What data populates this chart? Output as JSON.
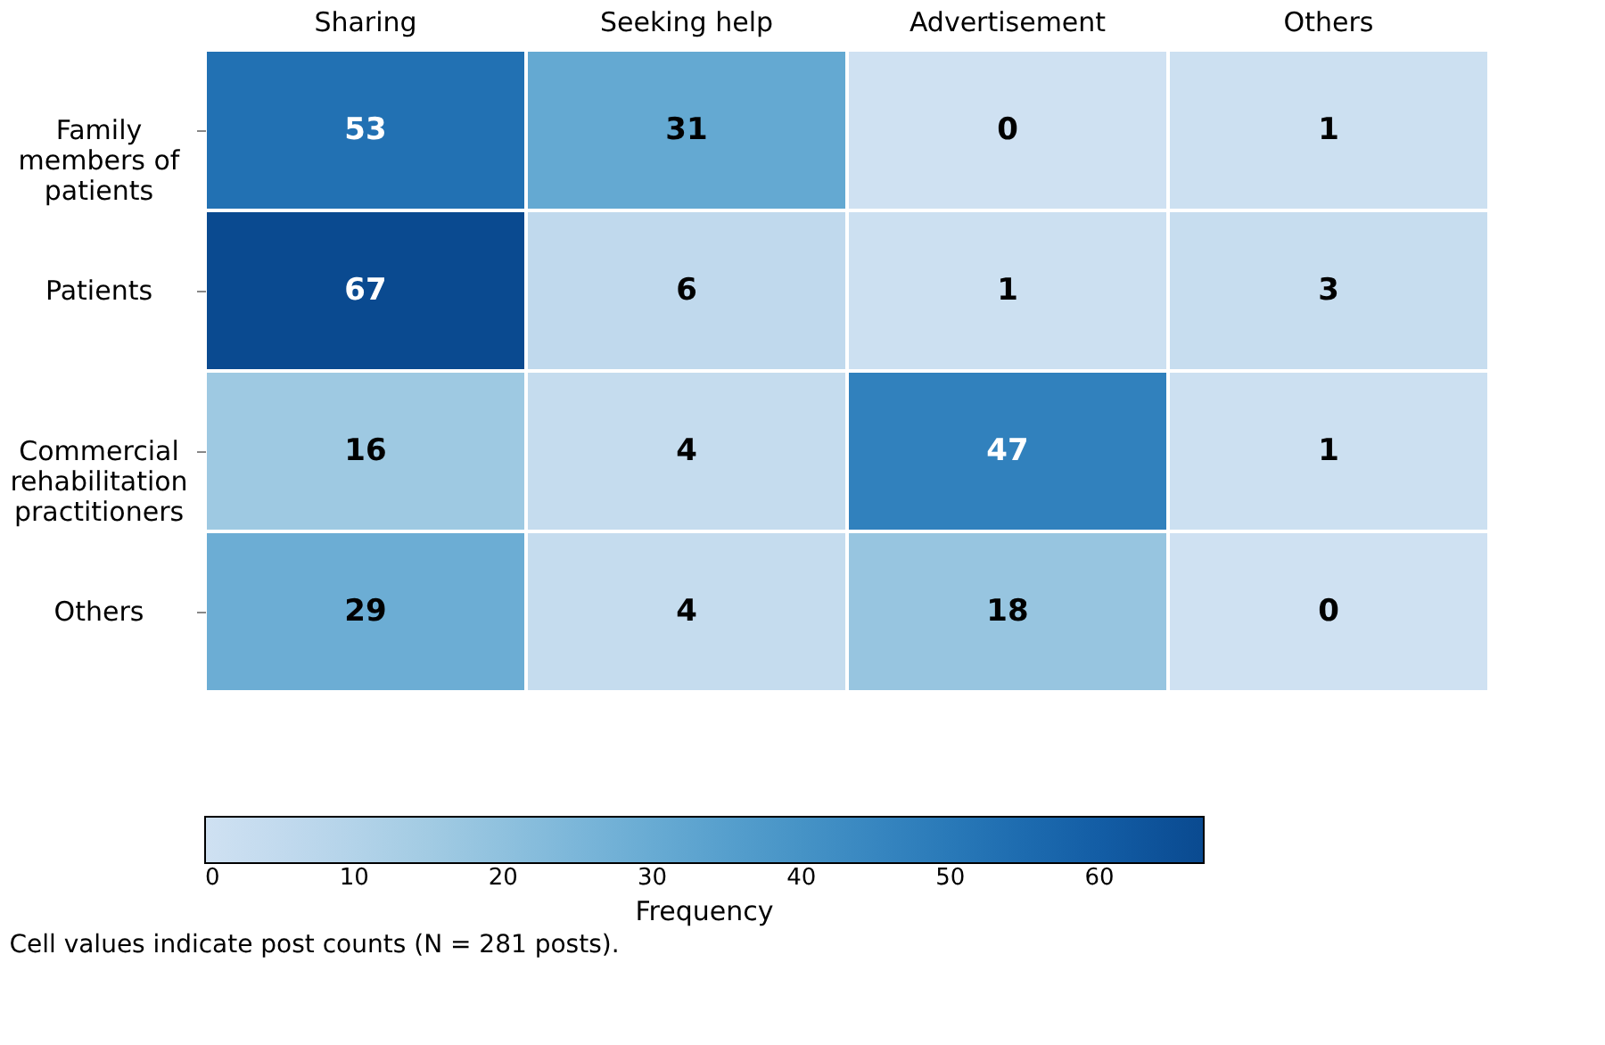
{
  "chart_data": {
    "type": "heatmap",
    "categories": [
      "Sharing",
      "Seeking help",
      "Advertisement",
      "Others"
    ],
    "y_categories": [
      "Family\nmembers of\npatients",
      "Patients",
      "Commercial\nrehabilitation\npractitioners",
      "Others"
    ],
    "cells": [
      [
        53,
        31,
        0,
        1
      ],
      [
        67,
        6,
        1,
        3
      ],
      [
        16,
        4,
        47,
        1
      ],
      [
        29,
        4,
        18,
        0
      ]
    ],
    "data_labels": true,
    "clabel": "Frequency",
    "clim": [
      0,
      67
    ],
    "cticks": [
      0,
      10,
      20,
      30,
      40,
      50,
      60
    ],
    "annotations": [
      "Cell values indicate post counts (N = 281 posts)."
    ]
  }
}
